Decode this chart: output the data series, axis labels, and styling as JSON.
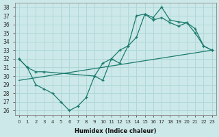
{
  "xlabel": "Humidex (Indice chaleur)",
  "xlim": [
    -0.5,
    23.5
  ],
  "ylim": [
    25.5,
    38.5
  ],
  "yticks": [
    26,
    27,
    28,
    29,
    30,
    31,
    32,
    33,
    34,
    35,
    36,
    37,
    38
  ],
  "xticks": [
    0,
    1,
    2,
    3,
    4,
    5,
    6,
    7,
    8,
    9,
    10,
    11,
    12,
    13,
    14,
    15,
    16,
    17,
    18,
    19,
    20,
    21,
    22,
    23
  ],
  "xtick_labels": [
    "0",
    "1",
    "2",
    "3",
    "4",
    "5",
    "6",
    "7",
    "8",
    "9",
    "10",
    "11",
    "12",
    "13",
    "14",
    "15",
    "16",
    "17",
    "18",
    "19",
    "20",
    "21",
    "22",
    "23"
  ],
  "bg_color": "#cce8e8",
  "line_color": "#1a7a6e",
  "grid_color": "#b0d8d8",
  "line1_x": [
    0,
    1,
    2,
    3,
    4,
    5,
    6,
    7,
    8,
    9,
    10,
    11,
    12,
    13,
    14,
    15,
    16,
    17,
    18,
    19,
    20,
    21,
    22,
    23
  ],
  "line1_y": [
    32.0,
    31.0,
    29.0,
    28.5,
    28.0,
    27.0,
    26.0,
    26.5,
    27.5,
    30.0,
    29.5,
    32.0,
    31.5,
    33.5,
    37.0,
    37.2,
    36.8,
    38.0,
    36.5,
    36.3,
    36.2,
    35.0,
    33.5,
    33.0
  ],
  "line2_x": [
    0,
    1,
    2,
    3,
    9,
    10,
    11,
    12,
    13,
    14,
    15,
    16,
    17,
    18,
    19,
    20,
    21,
    22,
    23
  ],
  "line2_y": [
    32.0,
    31.0,
    30.5,
    30.5,
    30.0,
    31.5,
    32.0,
    33.0,
    33.5,
    34.5,
    37.2,
    36.5,
    36.8,
    36.2,
    35.8,
    36.2,
    35.5,
    33.5,
    33.0
  ],
  "line3_x": [
    0,
    23
  ],
  "line3_y": [
    29.5,
    33.0
  ]
}
